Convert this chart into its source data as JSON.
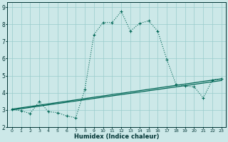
{
  "xlabel": "Humidex (Indice chaleur)",
  "bg_color": "#cce8e8",
  "grid_color": "#99cccc",
  "line_color": "#006655",
  "xlim": [
    -0.5,
    23.5
  ],
  "ylim": [
    2.0,
    9.3
  ],
  "xticks": [
    0,
    1,
    2,
    3,
    4,
    5,
    6,
    7,
    8,
    9,
    10,
    11,
    12,
    13,
    14,
    15,
    16,
    17,
    18,
    19,
    20,
    21,
    22,
    23
  ],
  "yticks": [
    2,
    3,
    4,
    5,
    6,
    7,
    8,
    9
  ],
  "line1_x": [
    0,
    1,
    2,
    3,
    4,
    5,
    6,
    7,
    8,
    9,
    10,
    11,
    12,
    13,
    14,
    15,
    16,
    17,
    18,
    19,
    20,
    21,
    22,
    23
  ],
  "line1_y": [
    3.05,
    2.95,
    2.8,
    3.5,
    2.9,
    2.85,
    2.65,
    2.55,
    4.2,
    7.4,
    8.1,
    8.1,
    8.75,
    7.6,
    8.05,
    8.2,
    7.6,
    5.95,
    4.5,
    4.4,
    4.35,
    3.7,
    4.75,
    4.8
  ],
  "line2_x": [
    0,
    23
  ],
  "line2_y": [
    3.05,
    4.82
  ],
  "line3_x": [
    0,
    23
  ],
  "line3_y": [
    3.0,
    4.72
  ],
  "font_color": "#003333"
}
